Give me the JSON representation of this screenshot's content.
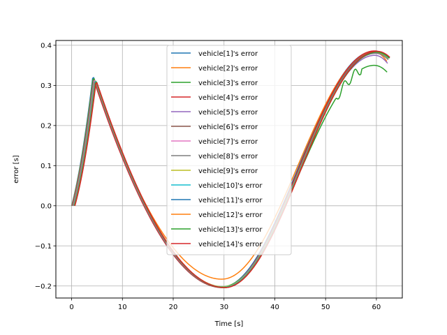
{
  "chart_data": {
    "type": "line",
    "title": "",
    "xlabel": "Time [s]",
    "ylabel": "error [s]",
    "xlim": [
      -3.1,
      65.1
    ],
    "ylim": [
      -0.23,
      0.412
    ],
    "xticks": [
      0,
      10,
      20,
      30,
      40,
      50,
      60
    ],
    "yticks": [
      -0.2,
      -0.1,
      0.0,
      0.1,
      0.2,
      0.3,
      0.4
    ],
    "xtick_labels": [
      "0",
      "10",
      "20",
      "30",
      "40",
      "50",
      "60"
    ],
    "ytick_labels": [
      "−0.2",
      "−0.1",
      "0.0",
      "0.1",
      "0.2",
      "0.3",
      "0.4"
    ],
    "grid": true,
    "legend_position": "top-center",
    "series": [
      {
        "name": "vehicle[1]'s error",
        "color": "#1f77b4",
        "dt": 0.0,
        "dy": 0.0,
        "peak": 0.325,
        "minv": -0.203,
        "endv": 0.385,
        "final": 0.372
      },
      {
        "name": "vehicle[2]'s error",
        "color": "#ff7f0e",
        "dt": 0.05,
        "dy": 0.0,
        "peak": 0.32,
        "minv": -0.183,
        "endv": 0.383,
        "final": 0.36
      },
      {
        "name": "vehicle[3]'s error",
        "color": "#2ca02c",
        "dt": 0.1,
        "dy": 0.0,
        "peak": 0.322,
        "minv": -0.202,
        "endv": 0.35,
        "final": 0.333
      },
      {
        "name": "vehicle[4]'s error",
        "color": "#d62728",
        "dt": 0.15,
        "dy": 0.0,
        "peak": 0.314,
        "minv": -0.204,
        "endv": 0.386,
        "final": 0.37
      },
      {
        "name": "vehicle[5]'s error",
        "color": "#9467bd",
        "dt": 0.2,
        "dy": 0.0,
        "peak": 0.318,
        "minv": -0.203,
        "endv": 0.375,
        "final": 0.355
      },
      {
        "name": "vehicle[6]'s error",
        "color": "#8c564b",
        "dt": 0.25,
        "dy": 0.0,
        "peak": 0.316,
        "minv": -0.204,
        "endv": 0.383,
        "final": 0.368
      },
      {
        "name": "vehicle[7]'s error",
        "color": "#e377c2",
        "dt": 0.3,
        "dy": 0.0,
        "peak": 0.317,
        "minv": -0.203,
        "endv": 0.38,
        "final": 0.365
      },
      {
        "name": "vehicle[8]'s error",
        "color": "#7f7f7f",
        "dt": 0.35,
        "dy": 0.0,
        "peak": 0.315,
        "minv": -0.203,
        "endv": 0.38,
        "final": 0.364
      },
      {
        "name": "vehicle[9]'s error",
        "color": "#bcbd22",
        "dt": 0.4,
        "dy": 0.0,
        "peak": 0.316,
        "minv": -0.202,
        "endv": 0.383,
        "final": 0.367
      },
      {
        "name": "vehicle[10]'s error",
        "color": "#17becf",
        "dt": 0.45,
        "dy": 0.0,
        "peak": 0.315,
        "minv": -0.203,
        "endv": 0.384,
        "final": 0.368
      },
      {
        "name": "vehicle[11]'s error",
        "color": "#1f77b4",
        "dt": 0.5,
        "dy": 0.0,
        "peak": 0.314,
        "minv": -0.204,
        "endv": 0.384,
        "final": 0.369
      },
      {
        "name": "vehicle[12]'s error",
        "color": "#ff7f0e",
        "dt": 0.55,
        "dy": 0.0,
        "peak": 0.313,
        "minv": -0.204,
        "endv": 0.384,
        "final": 0.369
      },
      {
        "name": "vehicle[13]'s error",
        "color": "#2ca02c",
        "dt": 0.6,
        "dy": 0.0,
        "peak": 0.313,
        "minv": -0.204,
        "endv": 0.383,
        "final": 0.368
      },
      {
        "name": "vehicle[14]'s error",
        "color": "#d62728",
        "dt": 0.65,
        "dy": 0.0,
        "peak": 0.312,
        "minv": -0.204,
        "endv": 0.385,
        "final": 0.37
      }
    ]
  }
}
